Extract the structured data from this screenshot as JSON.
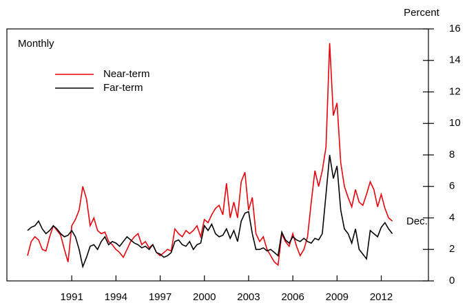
{
  "chart_data": {
    "type": "line",
    "y_axis_label": "Percent",
    "frequency_note": "Monthly",
    "end_annotation": "Dec.",
    "x": [
      1988,
      1988.25,
      1988.5,
      1988.75,
      1989,
      1989.25,
      1989.5,
      1989.75,
      1990,
      1990.25,
      1990.5,
      1990.75,
      1991,
      1991.25,
      1991.5,
      1991.75,
      1992,
      1992.25,
      1992.5,
      1992.75,
      1993,
      1993.25,
      1993.5,
      1993.75,
      1994,
      1994.25,
      1994.5,
      1994.75,
      1995,
      1995.25,
      1995.5,
      1995.75,
      1996,
      1996.25,
      1996.5,
      1996.75,
      1997,
      1997.25,
      1997.5,
      1997.75,
      1998,
      1998.25,
      1998.5,
      1998.75,
      1999,
      1999.25,
      1999.5,
      1999.75,
      2000,
      2000.25,
      2000.5,
      2000.75,
      2001,
      2001.25,
      2001.5,
      2001.75,
      2002,
      2002.25,
      2002.5,
      2002.75,
      2003,
      2003.25,
      2003.5,
      2003.75,
      2004,
      2004.25,
      2004.5,
      2004.75,
      2005,
      2005.25,
      2005.5,
      2005.75,
      2006,
      2006.25,
      2006.5,
      2006.75,
      2007,
      2007.25,
      2007.5,
      2007.75,
      2008,
      2008.25,
      2008.5,
      2008.75,
      2009,
      2009.25,
      2009.5,
      2009.75,
      2010,
      2010.25,
      2010.5,
      2010.75,
      2011,
      2011.25,
      2011.5,
      2011.75,
      2012,
      2012.25,
      2012.5,
      2012.75
    ],
    "series": [
      {
        "name": "Near-term",
        "color": "#e8000b",
        "values": [
          1.6,
          2.5,
          2.8,
          2.6,
          2.0,
          1.9,
          2.8,
          3.5,
          3.2,
          2.9,
          2.0,
          1.2,
          3.5,
          3.9,
          4.5,
          6.0,
          5.2,
          3.5,
          4.0,
          3.2,
          3.0,
          3.1,
          2.5,
          2.3,
          2.0,
          1.8,
          1.5,
          2.0,
          2.5,
          2.8,
          3.0,
          2.3,
          2.5,
          2.1,
          2.3,
          1.8,
          1.6,
          1.8,
          2.0,
          1.9,
          3.3,
          3.0,
          2.8,
          3.2,
          3.0,
          3.2,
          3.5,
          2.8,
          3.9,
          3.7,
          4.2,
          4.6,
          4.8,
          4.2,
          6.2,
          4.0,
          5.0,
          4.0,
          6.3,
          6.9,
          4.5,
          5.3,
          3.0,
          2.5,
          2.8,
          2.0,
          1.6,
          1.2,
          1.0,
          3.0,
          2.5,
          2.2,
          3.0,
          2.2,
          1.6,
          2.0,
          2.8,
          5.0,
          7.0,
          6.0,
          7.0,
          8.5,
          15.1,
          10.5,
          11.3,
          7.5,
          6.0,
          5.3,
          4.7,
          5.8,
          5.0,
          4.8,
          5.5,
          6.3,
          5.8,
          4.7,
          5.5,
          4.6,
          4.0,
          3.8
        ]
      },
      {
        "name": "Far-term",
        "color": "#000000",
        "values": [
          3.2,
          3.4,
          3.5,
          3.8,
          3.3,
          3.0,
          3.2,
          3.5,
          3.3,
          3.0,
          2.8,
          2.9,
          3.2,
          2.8,
          2.0,
          0.9,
          1.5,
          2.2,
          2.3,
          2.0,
          2.5,
          2.8,
          2.3,
          2.5,
          2.4,
          2.2,
          2.5,
          2.8,
          2.6,
          2.4,
          2.3,
          2.1,
          2.2,
          2.0,
          2.3,
          1.8,
          1.7,
          1.5,
          1.6,
          1.8,
          2.5,
          2.6,
          2.3,
          2.2,
          2.5,
          2.0,
          2.3,
          2.4,
          3.5,
          3.2,
          3.6,
          3.0,
          2.8,
          2.9,
          3.3,
          2.7,
          3.2,
          2.5,
          3.8,
          4.3,
          4.4,
          3.0,
          2.0,
          2.0,
          2.1,
          1.9,
          2.0,
          1.8,
          1.6,
          3.1,
          2.6,
          2.4,
          2.8,
          2.6,
          2.5,
          2.7,
          2.5,
          2.4,
          2.7,
          2.6,
          3.0,
          5.5,
          8.0,
          6.5,
          7.3,
          4.5,
          3.3,
          3.0,
          2.4,
          3.3,
          2.0,
          1.7,
          1.4,
          3.2,
          3.0,
          2.8,
          3.4,
          3.7,
          3.3,
          3.0
        ]
      }
    ],
    "xlim": [
      1986.6,
      2015.2
    ],
    "xticks": [
      1991,
      1994,
      1997,
      2000,
      2003,
      2006,
      2009,
      2012
    ],
    "ylim": [
      0,
      16
    ],
    "yticks": [
      0,
      2,
      4,
      6,
      8,
      10,
      12,
      14,
      16
    ],
    "legend": "upper-left"
  }
}
